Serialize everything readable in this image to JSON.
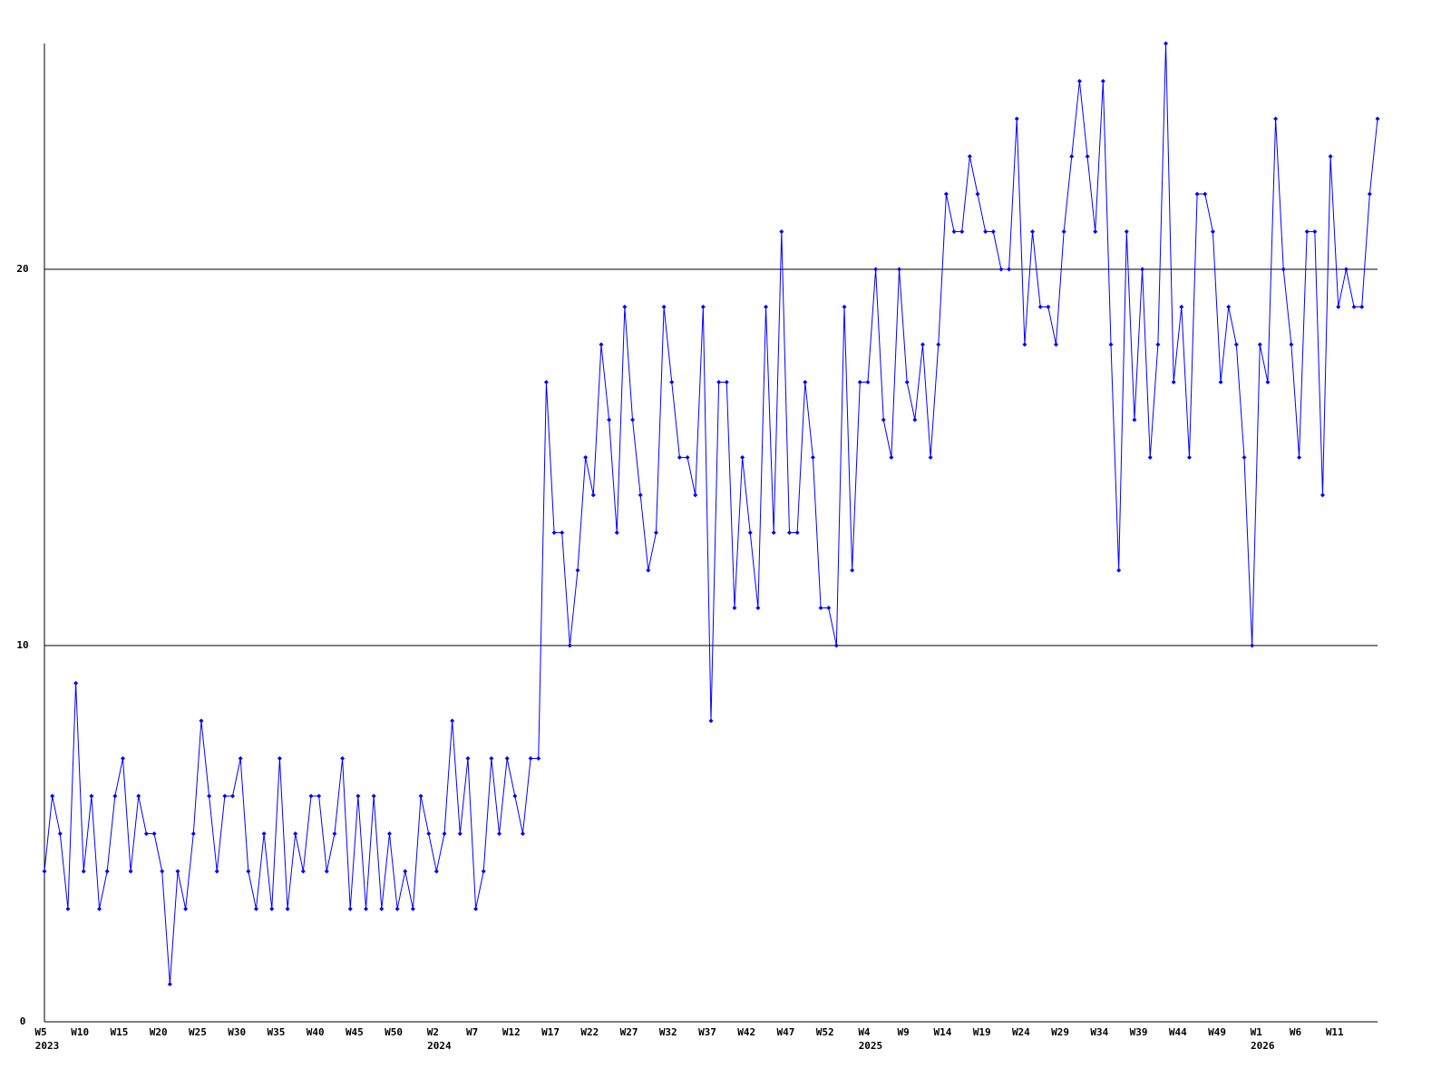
{
  "chart_data": {
    "type": "line",
    "categories": [
      "W5",
      null,
      null,
      null,
      null,
      "W10",
      null,
      null,
      null,
      null,
      "W15",
      null,
      null,
      null,
      null,
      "W20",
      null,
      null,
      null,
      null,
      "W25",
      null,
      null,
      null,
      null,
      "W30",
      null,
      null,
      null,
      null,
      "W35",
      null,
      null,
      null,
      null,
      "W40",
      null,
      null,
      null,
      null,
      "W45",
      null,
      null,
      null,
      null,
      "W50",
      null,
      null,
      null,
      null,
      "W2",
      null,
      null,
      null,
      null,
      "W7",
      null,
      null,
      null,
      null,
      "W12",
      null,
      null,
      null,
      null,
      "W17",
      null,
      null,
      null,
      null,
      "W22",
      null,
      null,
      null,
      null,
      "W27",
      null,
      null,
      null,
      null,
      "W32",
      null,
      null,
      null,
      null,
      "W37",
      null,
      null,
      null,
      null,
      "W42",
      null,
      null,
      null,
      null,
      "W47",
      null,
      null,
      null,
      null,
      "W52",
      null,
      null,
      null,
      null,
      "W4",
      null,
      null,
      null,
      null,
      "W9",
      null,
      null,
      null,
      null,
      "W14",
      null,
      null,
      null,
      null,
      "W19",
      null,
      null,
      null,
      null,
      "W24",
      null,
      null,
      null,
      null,
      "W29",
      null,
      null,
      null,
      null,
      "W34",
      null,
      null,
      null,
      null,
      "W39",
      null,
      null,
      null,
      null,
      "W44",
      null,
      null,
      null,
      null,
      "W49",
      null,
      null,
      null,
      null,
      "W1",
      null,
      null,
      null,
      null,
      "W6",
      null,
      null,
      null,
      null,
      "W11",
      null,
      null,
      null,
      null,
      null
    ],
    "category_years": [
      "2023",
      null,
      null,
      null,
      null,
      null,
      null,
      null,
      null,
      null,
      null,
      null,
      null,
      null,
      null,
      null,
      null,
      null,
      null,
      null,
      null,
      null,
      null,
      null,
      null,
      null,
      null,
      null,
      null,
      null,
      null,
      null,
      null,
      null,
      null,
      null,
      null,
      null,
      null,
      null,
      null,
      null,
      null,
      null,
      null,
      null,
      null,
      null,
      null,
      null,
      "2024",
      null,
      null,
      null,
      null,
      null,
      null,
      null,
      null,
      null,
      null,
      null,
      null,
      null,
      null,
      null,
      null,
      null,
      null,
      null,
      null,
      null,
      null,
      null,
      null,
      null,
      null,
      null,
      null,
      null,
      null,
      null,
      null,
      null,
      null,
      null,
      null,
      null,
      null,
      null,
      null,
      null,
      null,
      null,
      null,
      null,
      null,
      null,
      null,
      null,
      null,
      null,
      null,
      null,
      null,
      "2025",
      null,
      null,
      null,
      null,
      null,
      null,
      null,
      null,
      null,
      null,
      null,
      null,
      null,
      null,
      null,
      null,
      null,
      null,
      null,
      null,
      null,
      null,
      null,
      null,
      null,
      null,
      null,
      null,
      null,
      null,
      null,
      null,
      null,
      null,
      null,
      null,
      null,
      null,
      null,
      null,
      null,
      null,
      null,
      null,
      null,
      null,
      null,
      null,
      null,
      "2026",
      null,
      null,
      null,
      null,
      null,
      null,
      null,
      null,
      null,
      null,
      null,
      null,
      null,
      null,
      null
    ],
    "series": [
      {
        "color": "#0000ff",
        "values": [
          4,
          6,
          5,
          3,
          9,
          4,
          6,
          3,
          4,
          6,
          7,
          4,
          6,
          5,
          5,
          4,
          1,
          4,
          3,
          5,
          8,
          6,
          4,
          6,
          6,
          7,
          4,
          3,
          5,
          3,
          7,
          3,
          5,
          4,
          6,
          6,
          4,
          5,
          7,
          3,
          6,
          3,
          6,
          3,
          5,
          3,
          4,
          3,
          6,
          5,
          4,
          5,
          8,
          5,
          7,
          3,
          4,
          7,
          5,
          7,
          6,
          5,
          7,
          7,
          17,
          13,
          13,
          10,
          12,
          15,
          14,
          18,
          16,
          13,
          19,
          16,
          14,
          12,
          13,
          19,
          17,
          15,
          15,
          14,
          19,
          8,
          17,
          17,
          11,
          15,
          13,
          11,
          19,
          13,
          21,
          13,
          13,
          17,
          15,
          11,
          11,
          10,
          19,
          12,
          17,
          17,
          20,
          16,
          15,
          20,
          17,
          16,
          18,
          15,
          18,
          22,
          21,
          21,
          23,
          22,
          21,
          21,
          20,
          20,
          24,
          18,
          21,
          19,
          19,
          18,
          21,
          23,
          25,
          23,
          21,
          25,
          18,
          12,
          21,
          16,
          20,
          15,
          18,
          26,
          17,
          19,
          15,
          22,
          22,
          21,
          17,
          19,
          18,
          15,
          10,
          18,
          17,
          24,
          20,
          18,
          15,
          21,
          21,
          14,
          23,
          19,
          20,
          19,
          19,
          22,
          24
        ]
      }
    ],
    "ylim": [
      0,
      26
    ],
    "yticks": [
      0,
      10,
      20
    ],
    "grid": true
  }
}
